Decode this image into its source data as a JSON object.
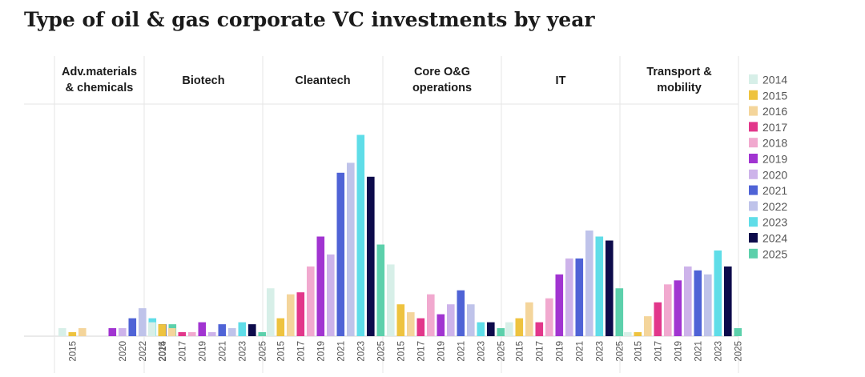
{
  "title": "Type of oil & gas corporate VC investments by year",
  "chart_data": {
    "type": "bar",
    "title": "Type of oil & gas corporate VC investments by year",
    "legend_position": "right",
    "grid": false,
    "ylim": [
      0,
      100
    ],
    "legend": [
      {
        "year": "2014",
        "color": "#d7efe8"
      },
      {
        "year": "2015",
        "color": "#eec33f"
      },
      {
        "year": "2016",
        "color": "#f4d59b"
      },
      {
        "year": "2017",
        "color": "#e2378b"
      },
      {
        "year": "2018",
        "color": "#f1a9cf"
      },
      {
        "year": "2019",
        "color": "#a134d1"
      },
      {
        "year": "2020",
        "color": "#cdb3ea"
      },
      {
        "year": "2021",
        "color": "#4f63d6"
      },
      {
        "year": "2022",
        "color": "#bfc3ea"
      },
      {
        "year": "2023",
        "color": "#5fdde8"
      },
      {
        "year": "2024",
        "color": "#0d0b4b"
      },
      {
        "year": "2025",
        "color": "#5cd0ab"
      }
    ],
    "panels": [
      {
        "label": [
          "Adv.materials",
          "& chemicals"
        ],
        "years": [
          "2014",
          "2015",
          "2016",
          "2017",
          "2018",
          "2019",
          "2020",
          "2021",
          "2022",
          "2023",
          "2024",
          "2025"
        ],
        "values": [
          4,
          2,
          4,
          0,
          0,
          4,
          4,
          9,
          14,
          9,
          6,
          6
        ],
        "tick_labels": [
          "2015",
          "2020",
          "2022",
          "2024"
        ]
      },
      {
        "label": [
          "Biotech"
        ],
        "years": [
          "2014",
          "2015",
          "2016",
          "2017",
          "2018",
          "2019",
          "2020",
          "2021",
          "2022",
          "2023",
          "2024",
          "2025"
        ],
        "values": [
          7,
          6,
          4,
          2,
          2,
          7,
          2,
          6,
          4,
          7,
          6,
          2
        ],
        "tick_labels": [
          "2015",
          "2017",
          "2019",
          "2021",
          "2023",
          "2025"
        ]
      },
      {
        "label": [
          "Cleantech"
        ],
        "years": [
          "2014",
          "2015",
          "2016",
          "2017",
          "2018",
          "2019",
          "2020",
          "2021",
          "2022",
          "2023",
          "2024",
          "2025"
        ],
        "values": [
          24,
          9,
          21,
          22,
          35,
          50,
          41,
          82,
          87,
          101,
          80,
          46
        ],
        "tick_labels": [
          "2015",
          "2017",
          "2019",
          "2021",
          "2023",
          "2025"
        ]
      },
      {
        "label": [
          "Core O&G",
          "operations"
        ],
        "years": [
          "2014",
          "2015",
          "2016",
          "2017",
          "2018",
          "2019",
          "2020",
          "2021",
          "2022",
          "2023",
          "2024",
          "2025"
        ],
        "values": [
          36,
          16,
          12,
          9,
          21,
          11,
          16,
          23,
          16,
          7,
          7,
          4
        ],
        "tick_labels": [
          "2015",
          "2017",
          "2019",
          "2021",
          "2023",
          "2025"
        ]
      },
      {
        "label": [
          "IT"
        ],
        "years": [
          "2014",
          "2015",
          "2016",
          "2017",
          "2018",
          "2019",
          "2020",
          "2021",
          "2022",
          "2023",
          "2024",
          "2025"
        ],
        "values": [
          7,
          9,
          17,
          7,
          19,
          31,
          39,
          39,
          53,
          50,
          48,
          24
        ],
        "tick_labels": [
          "2015",
          "2017",
          "2019",
          "2021",
          "2023",
          "2025"
        ]
      },
      {
        "label": [
          "Transport &",
          "mobility"
        ],
        "years": [
          "2014",
          "2015",
          "2016",
          "2017",
          "2018",
          "2019",
          "2020",
          "2021",
          "2022",
          "2023",
          "2024",
          "2025"
        ],
        "values": [
          2,
          2,
          10,
          17,
          26,
          28,
          35,
          33,
          31,
          43,
          35,
          4
        ],
        "tick_labels": [
          "2015",
          "2017",
          "2019",
          "2021",
          "2023",
          "2025"
        ]
      }
    ]
  }
}
